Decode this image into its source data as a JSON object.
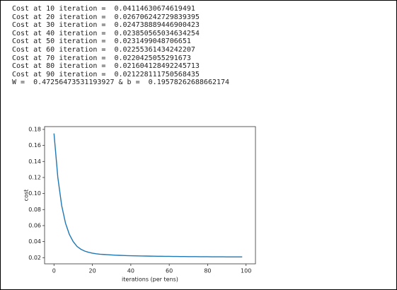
{
  "output": {
    "lines": [
      "Cost at 10 iteration =  0.04114630674619491",
      "Cost at 20 iteration =  0.026706242729839395",
      "Cost at 30 iteration =  0.024738889446900423",
      "Cost at 40 iteration =  0.023850565034634254",
      "Cost at 50 iteration =  0.0231499048706651",
      "Cost at 60 iteration =  0.02255361434242207",
      "Cost at 70 iteration =  0.0220425055291673",
      "Cost at 80 iteration =  0.021604128492245713",
      "Cost at 90 iteration =  0.021228111750568435",
      "W =  0.47256473531193927 & b =  0.19578262688662174"
    ]
  },
  "chart_data": {
    "type": "line",
    "x_label": "iterations (per tens)",
    "y_label": "cost",
    "x": [
      0,
      2,
      4,
      6,
      8,
      10,
      12,
      14,
      16,
      18,
      20,
      22,
      24,
      26,
      28,
      30,
      32,
      34,
      36,
      38,
      40,
      42,
      44,
      46,
      48,
      50,
      52,
      54,
      56,
      58,
      60,
      62,
      64,
      66,
      68,
      70,
      72,
      74,
      76,
      78,
      80,
      82,
      84,
      86,
      88,
      90,
      92,
      94,
      96,
      98
    ],
    "series": [
      {
        "color": "#1f77b4",
        "values": [
          0.175,
          0.12,
          0.085,
          0.063,
          0.049,
          0.04,
          0.034,
          0.0305,
          0.0282,
          0.0267,
          0.0256,
          0.0248,
          0.0243,
          0.024,
          0.0237,
          0.0234,
          0.0231,
          0.0229,
          0.0227,
          0.0225,
          0.0224,
          0.0223,
          0.0222,
          0.0221,
          0.022,
          0.0219,
          0.0218,
          0.0217,
          0.0217,
          0.0216,
          0.0216,
          0.0215,
          0.0215,
          0.0214,
          0.0214,
          0.0213,
          0.0213,
          0.0213,
          0.0212,
          0.0212,
          0.0212,
          0.0211,
          0.0211,
          0.0211,
          0.0211,
          0.021,
          0.021,
          0.021,
          0.021,
          0.021
        ]
      }
    ],
    "xlim": [
      -4.9,
      104.9
    ],
    "ylim": [
      0.0123,
      0.1835
    ],
    "xticks": [
      0,
      20,
      40,
      60,
      80,
      100
    ],
    "yticks": [
      0.02,
      0.04,
      0.06,
      0.08,
      {
        "value": 0.1,
        "label": "0.10"
      },
      0.12,
      0.14,
      0.16,
      0.18
    ]
  }
}
